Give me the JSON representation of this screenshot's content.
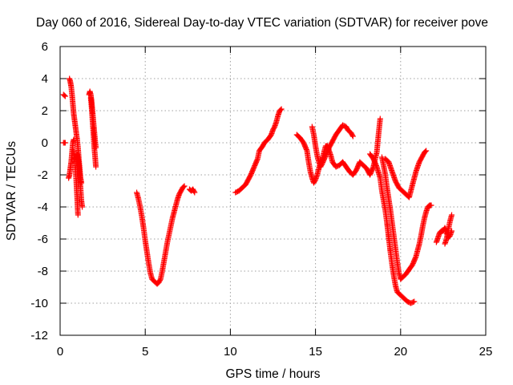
{
  "chart_data": {
    "type": "scatter",
    "title": "Day 060 of 2016, Sidereal Day-to-day VTEC variation (SDTVAR) for receiver pove",
    "xlabel": "GPS time / hours",
    "ylabel": "SDTVAR / TECUs",
    "xlim": [
      0,
      25
    ],
    "ylim": [
      -12,
      6
    ],
    "xticks": [
      "0",
      "5",
      "10",
      "15",
      "20",
      "25"
    ],
    "yticks": [
      "-12",
      "-10",
      "-8",
      "-6",
      "-4",
      "-2",
      "0",
      "2",
      "4",
      "6"
    ],
    "grid": true,
    "marker": "plus",
    "color": "#ff0000",
    "series": [
      {
        "name": "SDTVAR",
        "segments": [
          [
            [
              0.2,
              0.0
            ],
            [
              0.3,
              0.0
            ]
          ],
          [
            [
              0.2,
              3.0
            ],
            [
              0.3,
              2.9
            ]
          ],
          [
            [
              0.5,
              -2.2
            ],
            [
              0.55,
              -2.0
            ],
            [
              0.6,
              -1.6
            ],
            [
              0.65,
              -1.2
            ],
            [
              0.7,
              -0.6
            ],
            [
              0.75,
              0.0
            ],
            [
              0.8,
              0.2
            ]
          ],
          [
            [
              0.55,
              4.0
            ],
            [
              0.6,
              3.8
            ],
            [
              0.65,
              3.5
            ],
            [
              0.7,
              3.0
            ],
            [
              0.75,
              2.4
            ],
            [
              0.8,
              1.8
            ],
            [
              0.85,
              1.4
            ],
            [
              0.9,
              1.0
            ],
            [
              0.95,
              0.6
            ],
            [
              1.0,
              0.2
            ],
            [
              1.05,
              -0.3
            ],
            [
              1.1,
              -1.0
            ],
            [
              1.15,
              -1.6
            ],
            [
              1.2,
              -2.2
            ],
            [
              1.25,
              -2.5
            ]
          ],
          [
            [
              0.8,
              -0.5
            ],
            [
              0.85,
              -1.0
            ],
            [
              0.9,
              -1.6
            ],
            [
              0.95,
              -2.4
            ],
            [
              1.0,
              -3.4
            ],
            [
              1.05,
              -4.5
            ]
          ],
          [
            [
              1.0,
              -0.7
            ],
            [
              1.1,
              -1.3
            ],
            [
              1.15,
              -2.0
            ],
            [
              1.2,
              -2.8
            ],
            [
              1.25,
              -3.6
            ],
            [
              1.3,
              -4.0
            ]
          ],
          [
            [
              1.7,
              3.0
            ],
            [
              1.75,
              3.2
            ],
            [
              1.8,
              3.0
            ],
            [
              1.85,
              2.6
            ],
            [
              1.9,
              2.0
            ],
            [
              1.95,
              1.4
            ],
            [
              2.0,
              0.8
            ],
            [
              2.05,
              0.2
            ],
            [
              2.1,
              -0.3
            ]
          ],
          [
            [
              1.8,
              2.8
            ],
            [
              1.85,
              2.2
            ],
            [
              1.9,
              1.4
            ],
            [
              1.95,
              0.6
            ],
            [
              2.0,
              -0.2
            ],
            [
              2.05,
              -0.8
            ],
            [
              2.1,
              -1.5
            ]
          ],
          [
            [
              4.5,
              -3.1
            ],
            [
              4.6,
              -3.5
            ],
            [
              4.7,
              -4.0
            ],
            [
              4.8,
              -4.6
            ],
            [
              4.9,
              -5.3
            ],
            [
              5.0,
              -6.1
            ],
            [
              5.1,
              -6.8
            ],
            [
              5.2,
              -7.5
            ],
            [
              5.3,
              -8.1
            ],
            [
              5.4,
              -8.5
            ],
            [
              5.5,
              -8.6
            ],
            [
              5.6,
              -8.7
            ],
            [
              5.7,
              -8.8
            ],
            [
              5.8,
              -8.7
            ],
            [
              5.9,
              -8.5
            ],
            [
              6.0,
              -8.0
            ],
            [
              6.1,
              -7.4
            ],
            [
              6.2,
              -6.8
            ],
            [
              6.3,
              -6.2
            ],
            [
              6.4,
              -5.7
            ],
            [
              6.5,
              -5.2
            ],
            [
              6.6,
              -4.7
            ],
            [
              6.7,
              -4.3
            ],
            [
              6.8,
              -3.9
            ],
            [
              6.9,
              -3.5
            ],
            [
              7.0,
              -3.2
            ],
            [
              7.1,
              -3.0
            ],
            [
              7.2,
              -2.8
            ],
            [
              7.3,
              -2.7
            ]
          ],
          [
            [
              7.6,
              -2.9
            ],
            [
              7.7,
              -3.0
            ],
            [
              7.8,
              -2.9
            ],
            [
              7.9,
              -3.1
            ]
          ],
          [
            [
              10.3,
              -3.1
            ],
            [
              10.5,
              -3.0
            ],
            [
              10.7,
              -2.8
            ],
            [
              10.9,
              -2.6
            ],
            [
              11.0,
              -2.4
            ],
            [
              11.2,
              -2.0
            ],
            [
              11.4,
              -1.5
            ],
            [
              11.6,
              -1.0
            ],
            [
              11.7,
              -0.5
            ],
            [
              11.9,
              -0.2
            ],
            [
              12.0,
              0.0
            ],
            [
              12.2,
              0.2
            ],
            [
              12.4,
              0.5
            ],
            [
              12.5,
              0.8
            ],
            [
              12.6,
              1.0
            ],
            [
              12.7,
              1.3
            ],
            [
              12.8,
              1.7
            ],
            [
              12.9,
              2.0
            ],
            [
              13.0,
              2.1
            ]
          ],
          [
            [
              13.9,
              0.5
            ],
            [
              14.1,
              0.3
            ],
            [
              14.3,
              0.0
            ],
            [
              14.5,
              -0.5
            ],
            [
              14.6,
              -1.2
            ],
            [
              14.7,
              -1.8
            ],
            [
              14.8,
              -2.2
            ],
            [
              14.9,
              -2.5
            ],
            [
              15.0,
              -2.3
            ],
            [
              15.1,
              -2.0
            ],
            [
              15.2,
              -1.6
            ],
            [
              15.3,
              -1.2
            ],
            [
              15.4,
              -1.0
            ],
            [
              15.5,
              -0.6
            ],
            [
              15.6,
              -0.2
            ],
            [
              15.7,
              -0.2
            ],
            [
              15.8,
              -0.5
            ],
            [
              15.9,
              -0.8
            ],
            [
              16.0,
              -1.2
            ],
            [
              16.2,
              -1.5
            ],
            [
              16.4,
              -1.4
            ],
            [
              16.6,
              -1.2
            ],
            [
              16.8,
              -1.5
            ],
            [
              17.0,
              -1.8
            ],
            [
              17.2,
              -2.0
            ],
            [
              17.4,
              -1.7
            ],
            [
              17.6,
              -1.2
            ],
            [
              17.8,
              -1.4
            ],
            [
              18.0,
              -1.6
            ],
            [
              18.2,
              -2.0
            ],
            [
              18.4,
              -1.5
            ],
            [
              18.6,
              -0.6
            ],
            [
              18.7,
              0.5
            ],
            [
              18.8,
              1.5
            ]
          ],
          [
            [
              14.8,
              1.0
            ],
            [
              14.9,
              0.5
            ],
            [
              15.0,
              -0.2
            ],
            [
              15.1,
              -0.8
            ],
            [
              15.2,
              -1.2
            ],
            [
              15.3,
              -1.5
            ],
            [
              15.4,
              -1.3
            ],
            [
              15.6,
              -0.8
            ],
            [
              15.8,
              -0.3
            ],
            [
              16.0,
              0.1
            ],
            [
              16.2,
              0.5
            ],
            [
              16.4,
              0.8
            ],
            [
              16.6,
              1.1
            ],
            [
              16.8,
              1.0
            ],
            [
              16.9,
              0.8
            ],
            [
              17.1,
              0.6
            ],
            [
              17.2,
              0.4
            ]
          ],
          [
            [
              18.2,
              -0.7
            ],
            [
              18.4,
              -1.0
            ],
            [
              18.6,
              -1.5
            ],
            [
              18.8,
              -2.2
            ],
            [
              18.9,
              -3.0
            ],
            [
              19.0,
              -3.6
            ],
            [
              19.1,
              -4.2
            ],
            [
              19.2,
              -5.0
            ],
            [
              19.3,
              -5.9
            ],
            [
              19.4,
              -6.8
            ],
            [
              19.5,
              -7.6
            ],
            [
              19.6,
              -8.3
            ],
            [
              19.7,
              -8.9
            ],
            [
              19.8,
              -9.3
            ],
            [
              19.9,
              -9.4
            ],
            [
              20.0,
              -9.5
            ],
            [
              20.1,
              -9.6
            ],
            [
              20.2,
              -9.7
            ],
            [
              20.4,
              -9.9
            ],
            [
              20.6,
              -10.0
            ],
            [
              20.8,
              -9.9
            ]
          ],
          [
            [
              18.9,
              -0.9
            ],
            [
              19.0,
              -1.4
            ],
            [
              19.1,
              -2.0
            ],
            [
              19.2,
              -2.8
            ],
            [
              19.3,
              -3.5
            ],
            [
              19.4,
              -4.2
            ],
            [
              19.5,
              -5.0
            ],
            [
              19.6,
              -5.8
            ],
            [
              19.7,
              -6.6
            ],
            [
              19.8,
              -7.4
            ],
            [
              19.9,
              -8.1
            ],
            [
              20.0,
              -8.5
            ],
            [
              20.1,
              -8.4
            ],
            [
              20.3,
              -8.2
            ],
            [
              20.5,
              -7.9
            ],
            [
              20.7,
              -7.6
            ],
            [
              20.9,
              -7.1
            ],
            [
              21.0,
              -6.7
            ],
            [
              21.1,
              -6.3
            ],
            [
              21.2,
              -5.8
            ],
            [
              21.3,
              -5.2
            ],
            [
              21.4,
              -4.7
            ],
            [
              21.5,
              -4.3
            ],
            [
              21.6,
              -4.0
            ],
            [
              21.7,
              -3.9
            ],
            [
              21.8,
              -3.9
            ]
          ],
          [
            [
              19.1,
              -1.0
            ],
            [
              19.3,
              -1.2
            ],
            [
              19.5,
              -1.8
            ],
            [
              19.7,
              -2.4
            ],
            [
              19.9,
              -2.8
            ],
            [
              20.1,
              -3.0
            ],
            [
              20.3,
              -3.2
            ],
            [
              20.5,
              -3.4
            ],
            [
              20.6,
              -3.0
            ],
            [
              20.7,
              -2.6
            ],
            [
              20.8,
              -2.2
            ],
            [
              20.9,
              -1.8
            ],
            [
              21.0,
              -1.5
            ],
            [
              21.1,
              -1.2
            ],
            [
              21.2,
              -1.0
            ],
            [
              21.3,
              -0.8
            ],
            [
              21.4,
              -0.6
            ],
            [
              21.5,
              -0.5
            ]
          ],
          [
            [
              22.1,
              -6.2
            ],
            [
              22.2,
              -5.9
            ],
            [
              22.3,
              -5.6
            ],
            [
              22.4,
              -5.5
            ],
            [
              22.5,
              -5.5
            ],
            [
              22.6,
              -5.3
            ],
            [
              22.7,
              -5.6
            ],
            [
              22.8,
              -5.9
            ],
            [
              22.9,
              -5.8
            ],
            [
              23.0,
              -5.5
            ]
          ],
          [
            [
              22.6,
              -6.3
            ],
            [
              22.7,
              -6.0
            ],
            [
              22.8,
              -5.4
            ],
            [
              22.9,
              -4.9
            ],
            [
              23.0,
              -4.5
            ]
          ]
        ]
      }
    ]
  }
}
